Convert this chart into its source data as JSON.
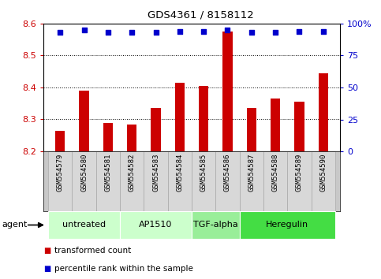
{
  "title": "GDS4361 / 8158112",
  "samples": [
    "GSM554579",
    "GSM554580",
    "GSM554581",
    "GSM554582",
    "GSM554583",
    "GSM554584",
    "GSM554585",
    "GSM554586",
    "GSM554587",
    "GSM554588",
    "GSM554589",
    "GSM554590"
  ],
  "bar_values": [
    8.265,
    8.39,
    8.29,
    8.285,
    8.335,
    8.415,
    8.405,
    8.575,
    8.335,
    8.365,
    8.355,
    8.445
  ],
  "percentile_values": [
    93,
    95,
    93,
    93,
    93,
    94,
    94,
    95,
    93,
    93,
    94,
    94
  ],
  "bar_color": "#cc0000",
  "percentile_color": "#0000cc",
  "ylim_left": [
    8.2,
    8.6
  ],
  "ylim_right": [
    0,
    100
  ],
  "yticks_left": [
    8.2,
    8.3,
    8.4,
    8.5,
    8.6
  ],
  "yticks_right": [
    0,
    25,
    50,
    75,
    100
  ],
  "ytick_labels_right": [
    "0",
    "25",
    "50",
    "75",
    "100%"
  ],
  "groups": [
    {
      "label": "untreated",
      "start": 0,
      "end": 2
    },
    {
      "label": "AP1510",
      "start": 3,
      "end": 5
    },
    {
      "label": "TGF-alpha",
      "start": 6,
      "end": 7
    },
    {
      "label": "Heregulin",
      "start": 8,
      "end": 11
    }
  ],
  "group_colors": [
    "#ccffcc",
    "#ccffcc",
    "#99ee99",
    "#44dd44"
  ],
  "legend_bar": "transformed count",
  "legend_pct": "percentile rank within the sample",
  "bar_bottom": 8.2,
  "bar_width": 0.4
}
